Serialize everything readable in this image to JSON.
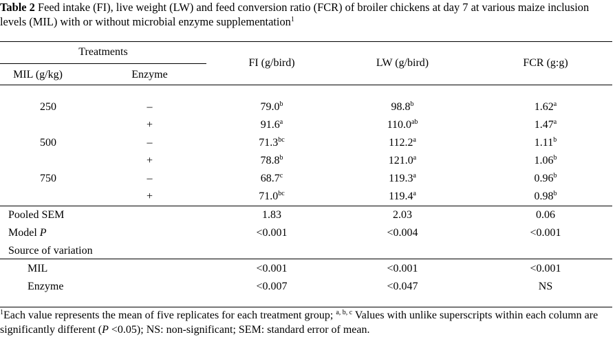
{
  "caption": {
    "label": "Table 2",
    "text": " Feed intake (FI), live weight (LW) and feed conversion ratio (FCR) of broiler chickens at day 7 at various maize inclusion levels (MIL) with or without microbial enzyme supplementation",
    "sup": "1"
  },
  "headers": {
    "treatments": "Treatments",
    "mil": "MIL (g/kg)",
    "enzyme": "Enzyme",
    "fi": "FI (g/bird)",
    "lw": "LW (g/bird)",
    "fcr": "FCR (g:g)"
  },
  "rows": [
    {
      "mil": "250",
      "enzyme": "–",
      "fi": "79.0",
      "fi_sup": "b",
      "lw": "98.8",
      "lw_sup": "b",
      "fcr": "1.62",
      "fcr_sup": "a"
    },
    {
      "mil": "",
      "enzyme": "+",
      "fi": "91.6",
      "fi_sup": "a",
      "lw": "110.0",
      "lw_sup": "ab",
      "fcr": "1.47",
      "fcr_sup": "a"
    },
    {
      "mil": "500",
      "enzyme": "–",
      "fi": "71.3",
      "fi_sup": "bc",
      "lw": "112.2",
      "lw_sup": "a",
      "fcr": "1.11",
      "fcr_sup": "b"
    },
    {
      "mil": "",
      "enzyme": "+",
      "fi": "78.8",
      "fi_sup": "b",
      "lw": "121.0",
      "lw_sup": "a",
      "fcr": "1.06",
      "fcr_sup": "b"
    },
    {
      "mil": "750",
      "enzyme": "–",
      "fi": "68.7",
      "fi_sup": "c",
      "lw": "119.3",
      "lw_sup": "a",
      "fcr": "0.96",
      "fcr_sup": "b"
    },
    {
      "mil": "",
      "enzyme": "+",
      "fi": "71.0",
      "fi_sup": "bc",
      "lw": "119.4",
      "lw_sup": "a",
      "fcr": "0.98",
      "fcr_sup": "b"
    }
  ],
  "pooled_sem": {
    "label": "Pooled SEM",
    "fi": "1.83",
    "lw": "2.03",
    "fcr": "0.06"
  },
  "model_p": {
    "label": "Model ",
    "label_italic": "P",
    "fi": "<0.001",
    "lw": "<0.004",
    "fcr": "<0.001"
  },
  "source": {
    "label": "Source of variation"
  },
  "mil_row": {
    "label": "MIL",
    "fi": "<0.001",
    "lw": "<0.001",
    "fcr": "<0.001"
  },
  "enzyme_row": {
    "label": "Enzyme",
    "fi": "<0.007",
    "lw": "<0.047",
    "fcr": "NS"
  },
  "footnote": {
    "sup1": "1",
    "part1": "Each value represents the mean of five replicates for each treatment group; ",
    "sup2": "a, b, c",
    "part2": " Values with unlike superscripts within each column are significantly different (",
    "p_italic": "P",
    "part3": " <0.05); NS: non-significant; SEM: standard error of mean."
  }
}
